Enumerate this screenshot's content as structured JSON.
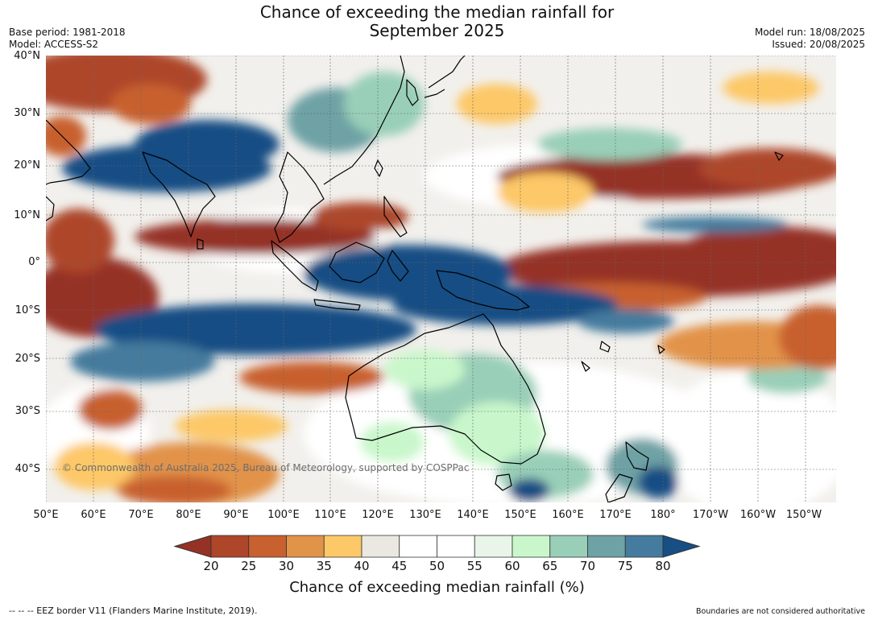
{
  "title_line1": "Chance of exceeding the median rainfall for",
  "title_line2": "September 2025",
  "meta_left": [
    "Base period: 1981-2018",
    "Model: ACCESS-S2"
  ],
  "meta_right": [
    "Model run: 18/08/2025",
    "Issued: 20/08/2025"
  ],
  "lat_labels": [
    "40°N",
    "30°N",
    "20°N",
    "10°N",
    "0°",
    "10°S",
    "20°S",
    "30°S",
    "40°S"
  ],
  "lon_labels": [
    "50°E",
    "60°E",
    "70°E",
    "80°E",
    "90°E",
    "100°E",
    "110°E",
    "120°E",
    "130°E",
    "140°E",
    "150°E",
    "160°E",
    "170°E",
    "180°",
    "170°W",
    "160°W",
    "150°W"
  ],
  "colorbar": {
    "labels": [
      "20",
      "25",
      "30",
      "35",
      "40",
      "45",
      "50",
      "55",
      "60",
      "65",
      "70",
      "75",
      "80"
    ],
    "colors": [
      "#953225",
      "#ae4629",
      "#c8602f",
      "#e2934a",
      "#fdc868",
      "#ebe8e2",
      "#ffffff",
      "#ffffff",
      "#e8f5e8",
      "#c9f7cb",
      "#99cfb8",
      "#6ea2a5",
      "#457b9e",
      "#174e84"
    ],
    "title": "Chance of exceeding median rainfall (%)"
  },
  "copyright": "© Commonwealth of Australia 2025, Bureau of Meteorology, supported by COSPPac",
  "footer_left": "-- -- -- EEZ border V11 (Flanders Marine Institute, 2019).",
  "footer_right": "Boundaries are not considered authoritative"
}
